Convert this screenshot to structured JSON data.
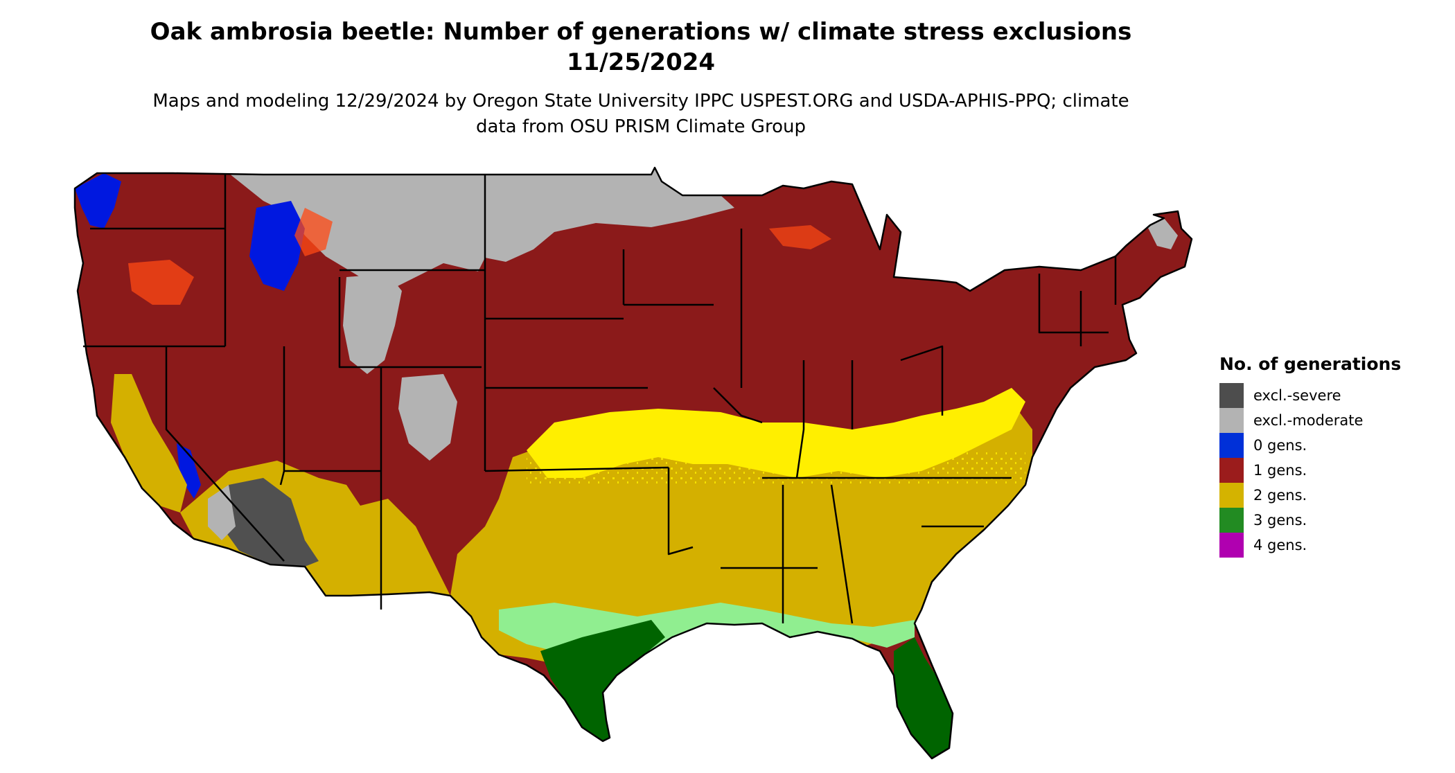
{
  "title": "Oak ambrosia beetle: Number of generations w/ climate stress exclusions 11/25/2024",
  "subtitle": "Maps and modeling 12/29/2024 by Oregon State University IPPC USPEST.ORG and USDA-APHIS-PPQ; climate data from OSU PRISM Climate Group",
  "legend": {
    "title": "No. of generations",
    "items": [
      {
        "label": "excl.-severe",
        "color": "#4d4d4d"
      },
      {
        "label": "excl.-moderate",
        "color": "#b3b3b3"
      },
      {
        "label": "0 gens.",
        "color": "#0030d8"
      },
      {
        "label": "1 gens.",
        "color": "#9b1c1c"
      },
      {
        "label": "2 gens.",
        "color": "#d4b300"
      },
      {
        "label": "3 gens.",
        "color": "#228b22"
      },
      {
        "label": "4 gens.",
        "color": "#b000b0"
      }
    ]
  },
  "map_colors": {
    "one_gen": "#8b1a1a",
    "two_gen": "#d4b000",
    "two_gen_bright": "#ffef00",
    "three_gen": "#006400",
    "three_gen_light": "#90ee90",
    "excl_moderate": "#b3b3b3",
    "excl_severe": "#505050",
    "zero_gen": "#0018e0",
    "orange_patch": "#ff4a14",
    "border": "#000000"
  }
}
